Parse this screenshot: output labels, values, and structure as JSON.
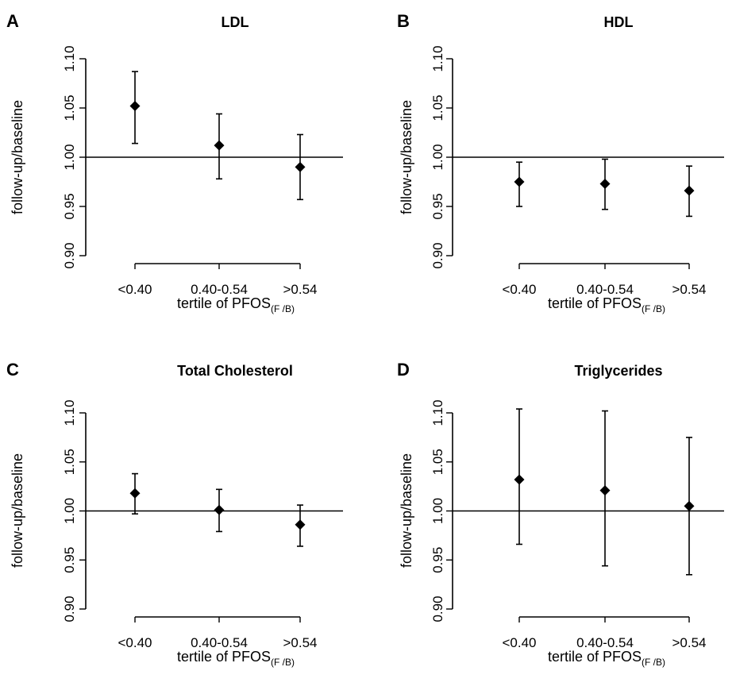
{
  "chart_data": [
    {
      "type": "scatter",
      "panel": "A",
      "title": "LDL",
      "ylabel": "follow-up/baseline",
      "xlabel": "tertile of PFOS",
      "xlabel_sub": "(F /B)",
      "categories": [
        "<0.40",
        "0.40-0.54",
        ">0.54"
      ],
      "values": [
        1.052,
        1.012,
        0.99
      ],
      "lower": [
        1.014,
        0.978,
        0.957
      ],
      "upper": [
        1.087,
        1.044,
        1.023
      ],
      "reference_line": 1.0,
      "yticks": [
        "0.90",
        "0.95",
        "1.00",
        "1.05",
        "1.10"
      ],
      "ylim": [
        0.9,
        1.1
      ],
      "grid": false
    },
    {
      "type": "scatter",
      "panel": "B",
      "title": "HDL",
      "ylabel": "follow-up/baseline",
      "xlabel": "tertile of PFOS",
      "xlabel_sub": "(F /B)",
      "categories": [
        "<0.40",
        "0.40-0.54",
        ">0.54"
      ],
      "values": [
        0.975,
        0.973,
        0.966
      ],
      "lower": [
        0.95,
        0.947,
        0.94
      ],
      "upper": [
        0.995,
        0.998,
        0.991
      ],
      "reference_line": 1.0,
      "yticks": [
        "0.90",
        "0.95",
        "1.00",
        "1.05",
        "1.10"
      ],
      "ylim": [
        0.9,
        1.1
      ],
      "grid": false
    },
    {
      "type": "scatter",
      "panel": "C",
      "title": "Total Cholesterol",
      "ylabel": "follow-up/baseline",
      "xlabel": "tertile of PFOS",
      "xlabel_sub": "(F /B)",
      "categories": [
        "<0.40",
        "0.40-0.54",
        ">0.54"
      ],
      "values": [
        1.018,
        1.001,
        0.986
      ],
      "lower": [
        0.997,
        0.979,
        0.964
      ],
      "upper": [
        1.038,
        1.022,
        1.006
      ],
      "reference_line": 1.0,
      "yticks": [
        "0.90",
        "0.95",
        "1.00",
        "1.05",
        "1.10"
      ],
      "ylim": [
        0.9,
        1.1
      ],
      "grid": false
    },
    {
      "type": "scatter",
      "panel": "D",
      "title": "Triglycerides",
      "ylabel": "follow-up/baseline",
      "xlabel": "tertile of PFOS",
      "xlabel_sub": "(F /B)",
      "categories": [
        "<0.40",
        "0.40-0.54",
        ">0.54"
      ],
      "values": [
        1.032,
        1.021,
        1.005
      ],
      "lower": [
        0.966,
        0.944,
        0.935
      ],
      "upper": [
        1.104,
        1.102,
        1.075
      ],
      "reference_line": 1.0,
      "yticks": [
        "0.90",
        "0.95",
        "1.00",
        "1.05",
        "1.10"
      ],
      "ylim": [
        0.9,
        1.1
      ],
      "grid": false
    }
  ]
}
